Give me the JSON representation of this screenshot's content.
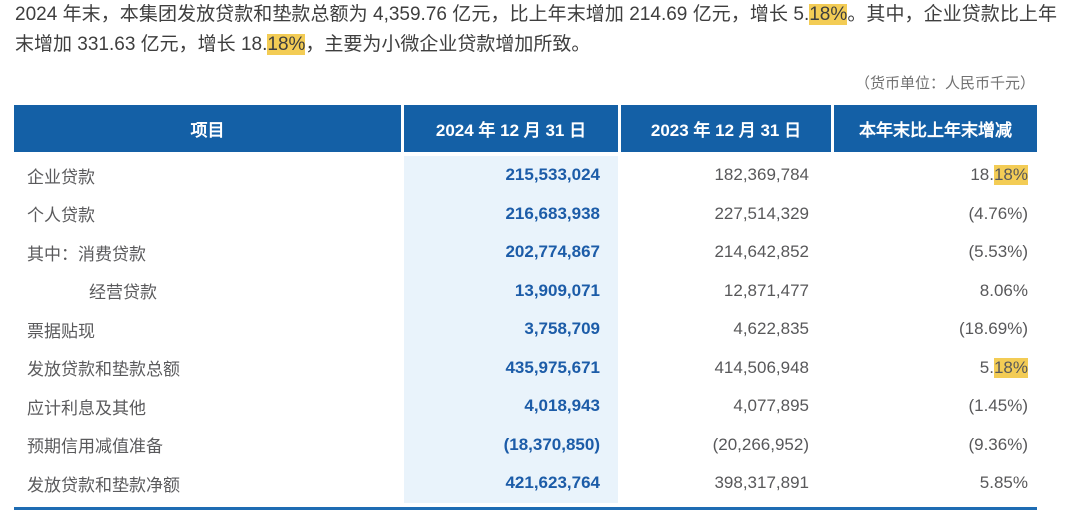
{
  "paragraph": {
    "segments": [
      {
        "text": "2024 年末，本集团发放贷款和垫款总额为 4,359.76 亿元，比上年末增加 214.69 亿元，增长 5.",
        "highlight": false
      },
      {
        "text": "18%",
        "highlight": true
      },
      {
        "text": "。其中，企业贷款比上年末增加 331.63 亿元，增长 18.",
        "highlight": false
      },
      {
        "text": "18%",
        "highlight": true
      },
      {
        "text": "，主要为小微企业贷款增加所致。",
        "highlight": false
      }
    ]
  },
  "unit_note": "（货币单位：人民币千元）",
  "table": {
    "headers": [
      "项目",
      "2024 年 12 月 31 日",
      "2023 年 12 月 31 日",
      "本年末比上年末增减"
    ],
    "rows": [
      {
        "label": "企业贷款",
        "indent": false,
        "v2024": "215,533,024",
        "v2023": "182,369,784",
        "change": [
          {
            "text": "18.",
            "highlight": false
          },
          {
            "text": "18%",
            "highlight": true
          }
        ]
      },
      {
        "label": "个人贷款",
        "indent": false,
        "v2024": "216,683,938",
        "v2023": "227,514,329",
        "change": [
          {
            "text": "(4.76%)",
            "highlight": false
          }
        ]
      },
      {
        "label": "其中：消费贷款",
        "indent": false,
        "v2024": "202,774,867",
        "v2023": "214,642,852",
        "change": [
          {
            "text": "(5.53%)",
            "highlight": false
          }
        ]
      },
      {
        "label": "经营贷款",
        "indent": true,
        "v2024": "13,909,071",
        "v2023": "12,871,477",
        "change": [
          {
            "text": "8.06%",
            "highlight": false
          }
        ]
      },
      {
        "label": "票据贴现",
        "indent": false,
        "v2024": "3,758,709",
        "v2023": "4,622,835",
        "change": [
          {
            "text": "(18.69%)",
            "highlight": false
          }
        ]
      },
      {
        "label": "发放贷款和垫款总额",
        "indent": false,
        "v2024": "435,975,671",
        "v2023": "414,506,948",
        "change": [
          {
            "text": "5.",
            "highlight": false
          },
          {
            "text": "18%",
            "highlight": true
          }
        ]
      },
      {
        "label": "应计利息及其他",
        "indent": false,
        "v2024": "4,018,943",
        "v2023": "4,077,895",
        "change": [
          {
            "text": "(1.45%)",
            "highlight": false
          }
        ]
      },
      {
        "label": "预期信用减值准备",
        "indent": false,
        "v2024": "(18,370,850)",
        "v2023": "(20,266,952)",
        "change": [
          {
            "text": "(9.36%)",
            "highlight": false
          }
        ]
      },
      {
        "label": "发放贷款和垫款净额",
        "indent": false,
        "v2024": "421,623,764",
        "v2023": "398,317,891",
        "change": [
          {
            "text": "5.85%",
            "highlight": false
          }
        ]
      }
    ]
  },
  "colors": {
    "header_bg": "#1460a6",
    "header_text": "#ffffff",
    "col_2024_bg": "#e9f3fb",
    "value_2024_text": "#1c5ca8",
    "body_text": "#58585a",
    "paragraph_text": "#3e3e3e",
    "note_text": "#717171",
    "highlight": "#f3cc55",
    "bottom_rule": "#1e6cb3"
  }
}
